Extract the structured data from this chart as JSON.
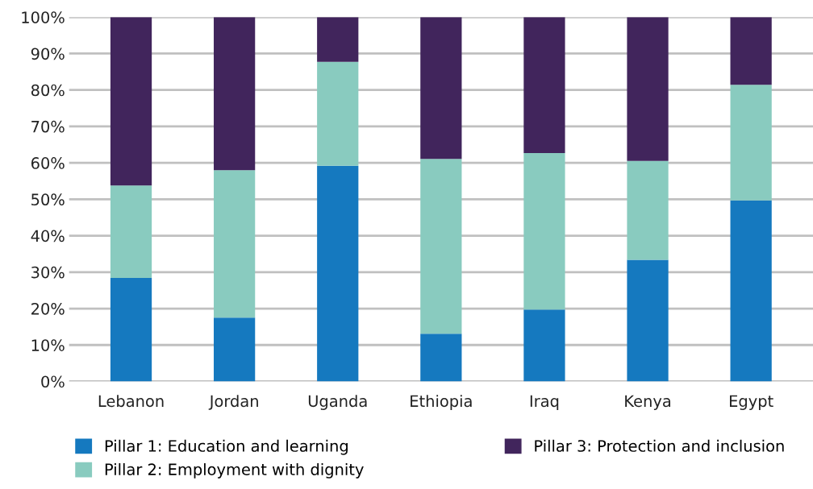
{
  "chart_data": {
    "type": "bar",
    "stacked": true,
    "categories": [
      "Lebanon",
      "Jordan",
      "Uganda",
      "Ethiopia",
      "Iraq",
      "Kenya",
      "Egypt"
    ],
    "series": [
      {
        "name": "Pillar 1: Education and learning",
        "color": "#1579bf",
        "values": [
          28.4,
          17.5,
          59.2,
          13.1,
          19.7,
          33.4,
          49.7
        ]
      },
      {
        "name": "Pillar 2: Employment with dignity",
        "color": "#89cbbf",
        "values": [
          25.4,
          40.5,
          28.5,
          48.0,
          43.0,
          27.1,
          31.7
        ]
      },
      {
        "name": "Pillar 3: Protection and inclusion",
        "color": "#41255c",
        "values": [
          46.2,
          42.0,
          12.3,
          38.9,
          37.3,
          39.5,
          18.6
        ]
      }
    ],
    "ylim": [
      0,
      100
    ],
    "yticks": [
      {
        "value": 0,
        "label": "0%"
      },
      {
        "value": 10,
        "label": "10%"
      },
      {
        "value": 20,
        "label": "20%"
      },
      {
        "value": 30,
        "label": "30%"
      },
      {
        "value": 40,
        "label": "40%"
      },
      {
        "value": 50,
        "label": "50%"
      },
      {
        "value": 60,
        "label": "60%"
      },
      {
        "value": 70,
        "label": "70%"
      },
      {
        "value": 80,
        "label": "80%"
      },
      {
        "value": 90,
        "label": "90%"
      },
      {
        "value": 100,
        "label": "100%"
      }
    ],
    "grid": "y",
    "legend": "bottom"
  }
}
